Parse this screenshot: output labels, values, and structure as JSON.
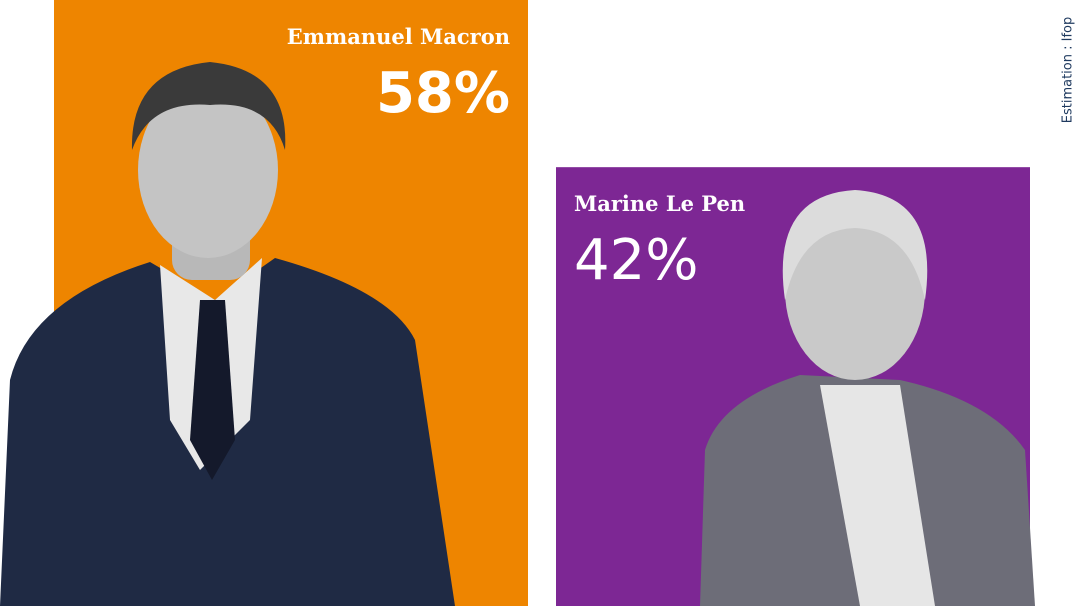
{
  "chart_data": {
    "type": "bar",
    "categories": [
      "Emmanuel Macron",
      "Marine Le Pen"
    ],
    "values": [
      58,
      42
    ],
    "value_labels": [
      "58%",
      "42%"
    ],
    "colors": [
      "#ee8500",
      "#7d2794"
    ],
    "note": "Estimation : Ifop"
  }
}
